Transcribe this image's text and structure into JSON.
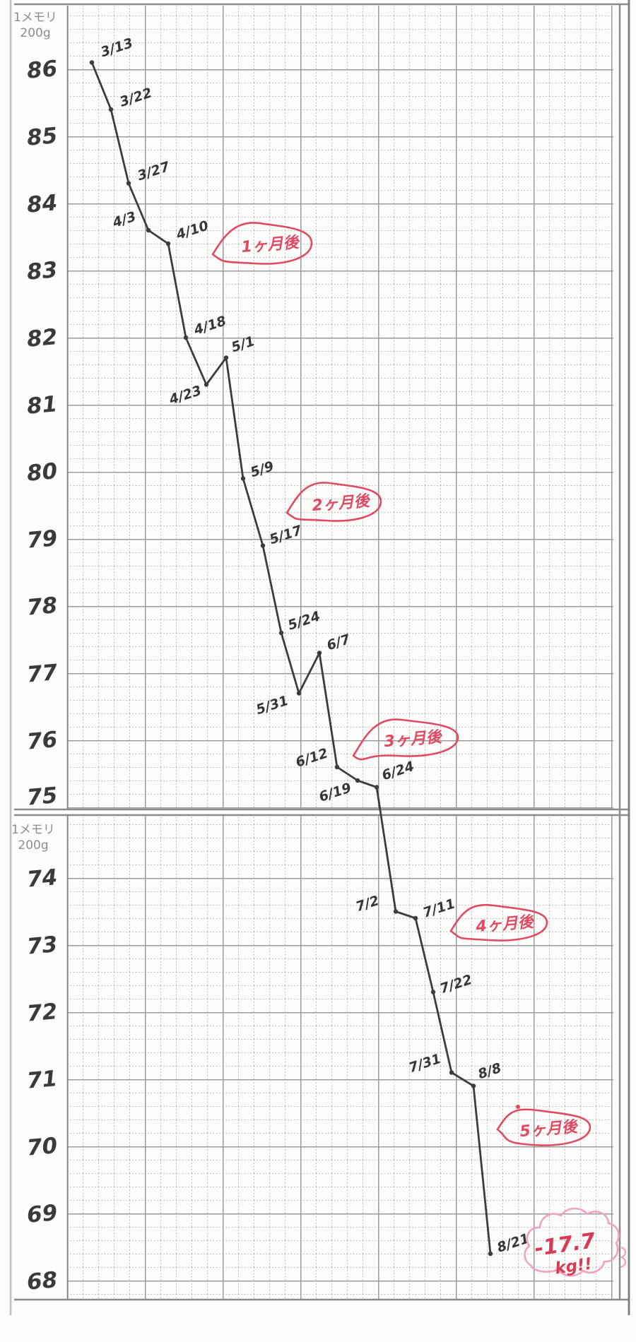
{
  "page": {
    "description": "Hand-drawn weight-loss line chart on squared graph paper, two stacked panels",
    "paper_color": "#fdfdfb"
  },
  "chart_data": {
    "type": "line",
    "title": "",
    "unit_note": [
      "1メモリ",
      "200g"
    ],
    "y_axis": {
      "panel1_ticks": [
        "86",
        "85",
        "84",
        "83",
        "82",
        "81",
        "80",
        "79",
        "78",
        "77",
        "76",
        "75"
      ],
      "panel2_ticks": [
        "74",
        "73",
        "72",
        "71",
        "70",
        "69",
        "68"
      ],
      "minor_tick_value_g": 200,
      "panel1_range": [
        75,
        86
      ],
      "panel2_range": [
        68,
        75
      ]
    },
    "points": [
      {
        "date": "3/13",
        "weight": 86.1
      },
      {
        "date": "3/22",
        "weight": 85.4
      },
      {
        "date": "3/27",
        "weight": 84.3
      },
      {
        "date": "4/3",
        "weight": 83.6
      },
      {
        "date": "4/10",
        "weight": 83.4
      },
      {
        "date": "4/18",
        "weight": 82.0
      },
      {
        "date": "4/23",
        "weight": 81.3
      },
      {
        "date": "5/1",
        "weight": 81.7
      },
      {
        "date": "5/9",
        "weight": 79.9
      },
      {
        "date": "5/17",
        "weight": 78.9
      },
      {
        "date": "5/24",
        "weight": 77.6
      },
      {
        "date": "5/31",
        "weight": 76.7
      },
      {
        "date": "6/7",
        "weight": 77.3
      },
      {
        "date": "6/12",
        "weight": 75.6
      },
      {
        "date": "6/19",
        "weight": 75.4
      },
      {
        "date": "6/24",
        "weight": 75.3
      },
      {
        "date": "7/2",
        "weight": 73.5
      },
      {
        "date": "7/11",
        "weight": 73.4
      },
      {
        "date": "7/22",
        "weight": 72.3
      },
      {
        "date": "7/31",
        "weight": 71.1
      },
      {
        "date": "8/8",
        "weight": 70.9
      },
      {
        "date": "8/21",
        "weight": 68.4
      }
    ],
    "annotations": [
      {
        "label": "1ヶ月後"
      },
      {
        "label": "2ヶ月後"
      },
      {
        "label": "3ヶ月後"
      },
      {
        "label": "4ヶ月後"
      },
      {
        "label": "5ヶ月後"
      }
    ],
    "total_loss_callout": {
      "line1": "-17.7",
      "line2": "kg!!"
    },
    "colors": {
      "ink": "#3c3c3c",
      "annotation_red": "#e04a63",
      "cloud_pink": "#f2a0c4",
      "grid_major": "#9c9c9c",
      "grid_minor": "#b4b4b4",
      "border_gray": "#8a8a8a"
    }
  }
}
